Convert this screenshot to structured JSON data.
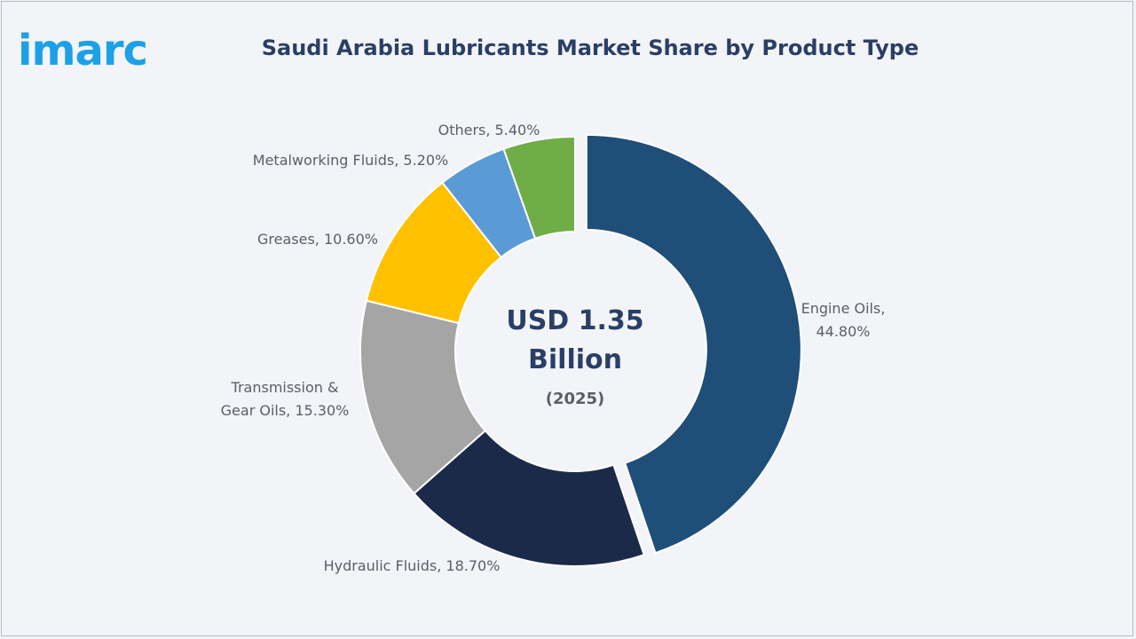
{
  "logo": {
    "text": "imarc",
    "color": "#1da1e6"
  },
  "chart_data": {
    "type": "pie",
    "title": "Saudi Arabia Lubricants Market Share by Product Type",
    "center_label": {
      "line1": "USD 1.35",
      "line2": "Billion",
      "line3": "(2025)"
    },
    "categories": [
      "Engine Oils",
      "Hydraulic Fluids",
      "Transmission & Gear Oils",
      "Greases",
      "Metalworking Fluids",
      "Others"
    ],
    "values": [
      44.8,
      18.7,
      15.3,
      10.6,
      5.2,
      5.4
    ],
    "colors": [
      "#1f4e79",
      "#1c2a4a",
      "#a5a5a5",
      "#ffc000",
      "#5b9bd5",
      "#70ad47"
    ],
    "labels": [
      [
        "Engine Oils,",
        "44.80%"
      ],
      [
        "Hydraulic Fluids, 18.70%"
      ],
      [
        "Transmission &",
        "Gear Oils, 15.30%"
      ],
      [
        "Greases, 10.60%"
      ],
      [
        "Metalworking Fluids, 5.20%"
      ],
      [
        "Others, 5.40%"
      ]
    ],
    "donut": true,
    "exploded": "Engine Oils",
    "legend": "none"
  }
}
